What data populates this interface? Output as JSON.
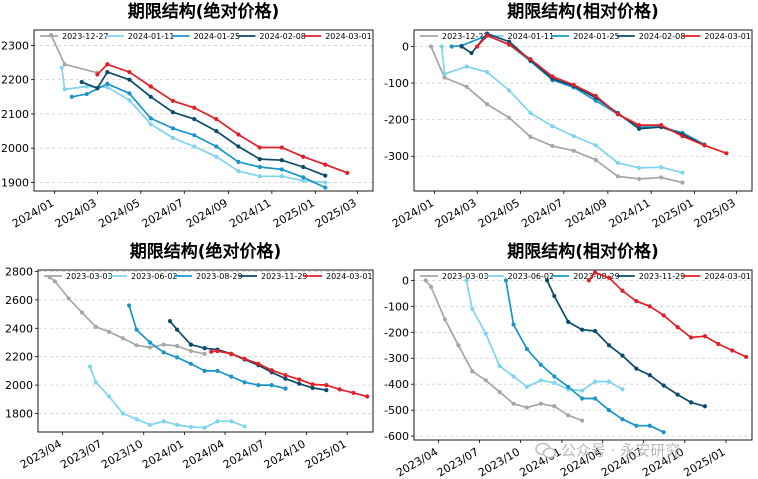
{
  "watermark": "公众号 · 永安研究",
  "chart_data": [
    {
      "type": "line",
      "title": "期限结构(绝对价格)",
      "xlabel": "",
      "ylabel": "",
      "x_ticks": [
        "2024/01",
        "2024/03",
        "2024/05",
        "2024/07",
        "2024/09",
        "2024/11",
        "2025/01",
        "2025/03"
      ],
      "y_ticks": [
        1900,
        2000,
        2100,
        2200,
        2300
      ],
      "ylim": [
        1875,
        2345
      ],
      "grid": "horizontal-dashed",
      "legend": "top",
      "series": [
        {
          "name": "2023-12-27",
          "color": "#a6a6a6",
          "x": [
            "2023-12-27",
            "2024-01-15",
            "2024-03-01"
          ],
          "y": [
            2330,
            2245,
            2220
          ]
        },
        {
          "name": "2024-01-11",
          "color": "#7fd3ef",
          "x": [
            "2024-01-11",
            "2024-01-15",
            "2024-02-15",
            "2024-03-15",
            "2024-04-15",
            "2024-05-15",
            "2024-06-15",
            "2024-07-15",
            "2024-08-15",
            "2024-09-15",
            "2024-10-15",
            "2024-11-15",
            "2024-12-15",
            "2025-01-15"
          ],
          "y": [
            2235,
            2172,
            2180,
            2178,
            2140,
            2070,
            2030,
            2005,
            1975,
            1933,
            1918,
            1918,
            1905,
            1900
          ]
        },
        {
          "name": "2024-01-25",
          "color": "#1a95c8",
          "x": [
            "2024-01-25",
            "2024-02-15",
            "2024-03-15",
            "2024-04-15",
            "2024-05-15",
            "2024-06-15",
            "2024-07-15",
            "2024-08-15",
            "2024-09-15",
            "2024-10-15",
            "2024-11-15",
            "2024-12-15",
            "2025-01-15"
          ],
          "y": [
            2150,
            2158,
            2188,
            2160,
            2087,
            2058,
            2038,
            2005,
            1960,
            1945,
            1938,
            1915,
            1885
          ]
        },
        {
          "name": "2024-02-08",
          "color": "#0a4a6b",
          "x": [
            "2024-02-08",
            "2024-03-01",
            "2024-03-15",
            "2024-04-15",
            "2024-05-15",
            "2024-06-15",
            "2024-07-15",
            "2024-08-15",
            "2024-09-15",
            "2024-10-15",
            "2024-11-15",
            "2024-12-15",
            "2025-01-15"
          ],
          "y": [
            2193,
            2175,
            2222,
            2200,
            2150,
            2105,
            2085,
            2050,
            2005,
            1968,
            1965,
            1945,
            1920
          ]
        },
        {
          "name": "2024-03-01",
          "color": "#e11f26",
          "x": [
            "2024-03-01",
            "2024-03-15",
            "2024-04-15",
            "2024-05-15",
            "2024-06-15",
            "2024-07-15",
            "2024-08-15",
            "2024-09-15",
            "2024-10-15",
            "2024-11-15",
            "2024-12-15",
            "2025-01-15",
            "2025-02-15"
          ],
          "y": [
            2215,
            2245,
            2222,
            2180,
            2138,
            2118,
            2085,
            2040,
            2002,
            2002,
            1975,
            1952,
            1928
          ]
        }
      ]
    },
    {
      "type": "line",
      "title": "期限结构(相对价格)",
      "xlabel": "",
      "ylabel": "",
      "x_ticks": [
        "2024/01",
        "2024/03",
        "2024/05",
        "2024/07",
        "2024/09",
        "2024/11",
        "2025/01",
        "2025/03"
      ],
      "y_ticks": [
        0,
        -100,
        -200,
        -300
      ],
      "ylim": [
        -395,
        45
      ],
      "grid": "horizontal-dashed",
      "legend": "top",
      "series": [
        {
          "name": "2023-12-27",
          "color": "#a6a6a6",
          "x": [
            "2023-12-27",
            "2024-01-15",
            "2024-02-15",
            "2024-03-15",
            "2024-04-15",
            "2024-05-15",
            "2024-06-15",
            "2024-07-15",
            "2024-08-15",
            "2024-09-15",
            "2024-10-15",
            "2024-11-15",
            "2024-12-15"
          ],
          "y": [
            0,
            -85,
            -110,
            -158,
            -195,
            -247,
            -272,
            -285,
            -310,
            -355,
            -362,
            -358,
            -372
          ]
        },
        {
          "name": "2024-01-11",
          "color": "#7fd3ef",
          "x": [
            "2024-01-11",
            "2024-01-15",
            "2024-02-15",
            "2024-03-15",
            "2024-04-15",
            "2024-05-15",
            "2024-06-15",
            "2024-07-15",
            "2024-08-15",
            "2024-09-15",
            "2024-10-15",
            "2024-11-15",
            "2024-12-15"
          ],
          "y": [
            0,
            -75,
            -55,
            -70,
            -120,
            -182,
            -218,
            -245,
            -270,
            -318,
            -332,
            -330,
            -345
          ]
        },
        {
          "name": "2024-01-25",
          "color": "#1a95c8",
          "x": [
            "2024-01-25",
            "2024-02-08",
            "2024-03-15",
            "2024-04-15",
            "2024-05-15",
            "2024-06-15",
            "2024-07-15",
            "2024-08-15",
            "2024-09-15",
            "2024-10-15",
            "2024-11-15",
            "2024-12-15",
            "2025-01-15"
          ],
          "y": [
            0,
            2,
            30,
            5,
            -40,
            -92,
            -112,
            -148,
            -185,
            -220,
            -220,
            -236,
            -268
          ]
        },
        {
          "name": "2024-02-08",
          "color": "#0a4a6b",
          "x": [
            "2024-02-08",
            "2024-02-22",
            "2024-03-15",
            "2024-04-15",
            "2024-05-15",
            "2024-06-15",
            "2024-07-15",
            "2024-08-15",
            "2024-09-15",
            "2024-10-15",
            "2024-11-15",
            "2024-12-15",
            "2025-01-15"
          ],
          "y": [
            0,
            -18,
            35,
            13,
            -38,
            -88,
            -108,
            -140,
            -182,
            -225,
            -220,
            -240,
            -270
          ]
        },
        {
          "name": "2024-03-01",
          "color": "#e11f26",
          "x": [
            "2024-03-01",
            "2024-03-15",
            "2024-04-15",
            "2024-05-15",
            "2024-06-15",
            "2024-07-15",
            "2024-08-15",
            "2024-09-15",
            "2024-10-15",
            "2024-11-15",
            "2024-12-15",
            "2025-01-15",
            "2025-02-15"
          ],
          "y": [
            0,
            30,
            5,
            -35,
            -82,
            -105,
            -135,
            -185,
            -215,
            -215,
            -245,
            -270,
            -292
          ]
        }
      ]
    },
    {
      "type": "line",
      "title": "期限结构(绝对价格)",
      "xlabel": "",
      "ylabel": "",
      "x_ticks": [
        "2023/04",
        "2023/07",
        "2023/10",
        "2024/01",
        "2024/04",
        "2024/07",
        "2024/10",
        "2025/01"
      ],
      "y_ticks": [
        1800,
        2000,
        2200,
        2400,
        2600,
        2800
      ],
      "ylim": [
        1670,
        2810
      ],
      "grid": "horizontal-dashed",
      "legend": "top",
      "series": [
        {
          "name": "2023-03-03",
          "color": "#a6a6a6",
          "x": [
            "2023-03-03",
            "2023-03-15",
            "2023-04-15",
            "2023-05-15",
            "2023-06-15",
            "2023-07-15",
            "2023-08-15",
            "2023-09-15",
            "2023-10-15",
            "2023-11-15",
            "2023-12-15",
            "2024-01-15",
            "2024-02-15"
          ],
          "y": [
            2760,
            2730,
            2610,
            2510,
            2410,
            2375,
            2330,
            2280,
            2265,
            2285,
            2275,
            2240,
            2220
          ]
        },
        {
          "name": "2023-06-02",
          "color": "#7fd3ef",
          "x": [
            "2023-06-02",
            "2023-06-15",
            "2023-07-15",
            "2023-08-15",
            "2023-09-15",
            "2023-10-15",
            "2023-11-15",
            "2023-12-15",
            "2024-01-15",
            "2024-02-15",
            "2024-03-15",
            "2024-04-15",
            "2024-05-15"
          ],
          "y": [
            2130,
            2020,
            1920,
            1800,
            1760,
            1720,
            1745,
            1720,
            1705,
            1700,
            1745,
            1745,
            1710
          ]
        },
        {
          "name": "2023-08-29",
          "color": "#1a95c8",
          "x": [
            "2023-08-29",
            "2023-09-15",
            "2023-10-15",
            "2023-11-15",
            "2023-12-15",
            "2024-01-15",
            "2024-02-15",
            "2024-03-15",
            "2024-04-15",
            "2024-05-15",
            "2024-06-15",
            "2024-07-15",
            "2024-08-15"
          ],
          "y": [
            2560,
            2390,
            2300,
            2230,
            2195,
            2150,
            2100,
            2100,
            2060,
            2020,
            2000,
            2000,
            1975
          ]
        },
        {
          "name": "2023-11-29",
          "color": "#0a4a6b",
          "x": [
            "2023-11-29",
            "2023-12-15",
            "2024-01-15",
            "2024-02-15",
            "2024-03-15",
            "2024-04-15",
            "2024-05-15",
            "2024-06-15",
            "2024-07-15",
            "2024-08-15",
            "2024-09-15",
            "2024-10-15",
            "2024-11-15"
          ],
          "y": [
            2450,
            2390,
            2285,
            2260,
            2250,
            2220,
            2180,
            2140,
            2090,
            2045,
            2010,
            1980,
            1965
          ]
        },
        {
          "name": "2024-03-01",
          "color": "#e11f26",
          "x": [
            "2024-03-01",
            "2024-03-15",
            "2024-04-15",
            "2024-05-15",
            "2024-06-15",
            "2024-07-15",
            "2024-08-15",
            "2024-09-15",
            "2024-10-15",
            "2024-11-15",
            "2024-12-15",
            "2025-01-15",
            "2025-02-15"
          ],
          "y": [
            2235,
            2240,
            2220,
            2185,
            2150,
            2105,
            2070,
            2040,
            2005,
            2000,
            1970,
            1945,
            1920
          ]
        }
      ]
    },
    {
      "type": "line",
      "title": "期限结构(相对价格)",
      "xlabel": "",
      "ylabel": "",
      "x_ticks": [
        "2023/04",
        "2023/07",
        "2023/10",
        "2024/01",
        "2024/04",
        "2024/07",
        "2024/10",
        "2025/01"
      ],
      "y_ticks": [
        0,
        -100,
        -200,
        -300,
        -400,
        -500,
        -600
      ],
      "ylim": [
        -615,
        40
      ],
      "grid": "horizontal-dashed",
      "legend": "top",
      "series": [
        {
          "name": "2023-03-03",
          "color": "#a6a6a6",
          "x": [
            "2023-03-03",
            "2023-03-15",
            "2023-04-15",
            "2023-05-15",
            "2023-06-15",
            "2023-07-15",
            "2023-08-15",
            "2023-09-15",
            "2023-10-15",
            "2023-11-15",
            "2023-12-15",
            "2024-01-15",
            "2024-02-15"
          ],
          "y": [
            0,
            -25,
            -150,
            -250,
            -350,
            -385,
            -430,
            -475,
            -490,
            -475,
            -485,
            -520,
            -540
          ]
        },
        {
          "name": "2023-06-02",
          "color": "#7fd3ef",
          "x": [
            "2023-06-02",
            "2023-06-15",
            "2023-07-15",
            "2023-08-15",
            "2023-09-15",
            "2023-10-15",
            "2023-11-15",
            "2023-12-15",
            "2024-01-15",
            "2024-02-15",
            "2024-03-15",
            "2024-04-15",
            "2024-05-15"
          ],
          "y": [
            0,
            -110,
            -205,
            -330,
            -370,
            -410,
            -385,
            -395,
            -420,
            -425,
            -390,
            -390,
            -420
          ]
        },
        {
          "name": "2023-08-29",
          "color": "#1a95c8",
          "x": [
            "2023-08-29",
            "2023-09-15",
            "2023-10-15",
            "2023-11-15",
            "2023-12-15",
            "2024-01-15",
            "2024-02-15",
            "2024-03-15",
            "2024-04-15",
            "2024-05-15",
            "2024-06-15",
            "2024-07-15",
            "2024-08-15"
          ],
          "y": [
            0,
            -170,
            -265,
            -325,
            -370,
            -410,
            -455,
            -455,
            -500,
            -535,
            -560,
            -560,
            -585
          ]
        },
        {
          "name": "2023-11-29",
          "color": "#0a4a6b",
          "x": [
            "2023-11-29",
            "2023-12-15",
            "2024-01-15",
            "2024-02-15",
            "2024-03-15",
            "2024-04-15",
            "2024-05-15",
            "2024-06-15",
            "2024-07-15",
            "2024-08-15",
            "2024-09-15",
            "2024-10-15",
            "2024-11-15"
          ],
          "y": [
            0,
            -60,
            -160,
            -190,
            -195,
            -250,
            -290,
            -340,
            -365,
            -405,
            -440,
            -470,
            -485
          ]
        },
        {
          "name": "2024-03-01",
          "color": "#e11f26",
          "x": [
            "2024-03-01",
            "2024-03-15",
            "2024-04-15",
            "2024-05-15",
            "2024-06-15",
            "2024-07-15",
            "2024-08-15",
            "2024-09-15",
            "2024-10-15",
            "2024-11-15",
            "2024-12-15",
            "2025-01-15",
            "2025-02-15"
          ],
          "y": [
            0,
            30,
            10,
            -40,
            -80,
            -100,
            -135,
            -180,
            -220,
            -215,
            -245,
            -270,
            -295
          ]
        }
      ]
    }
  ]
}
